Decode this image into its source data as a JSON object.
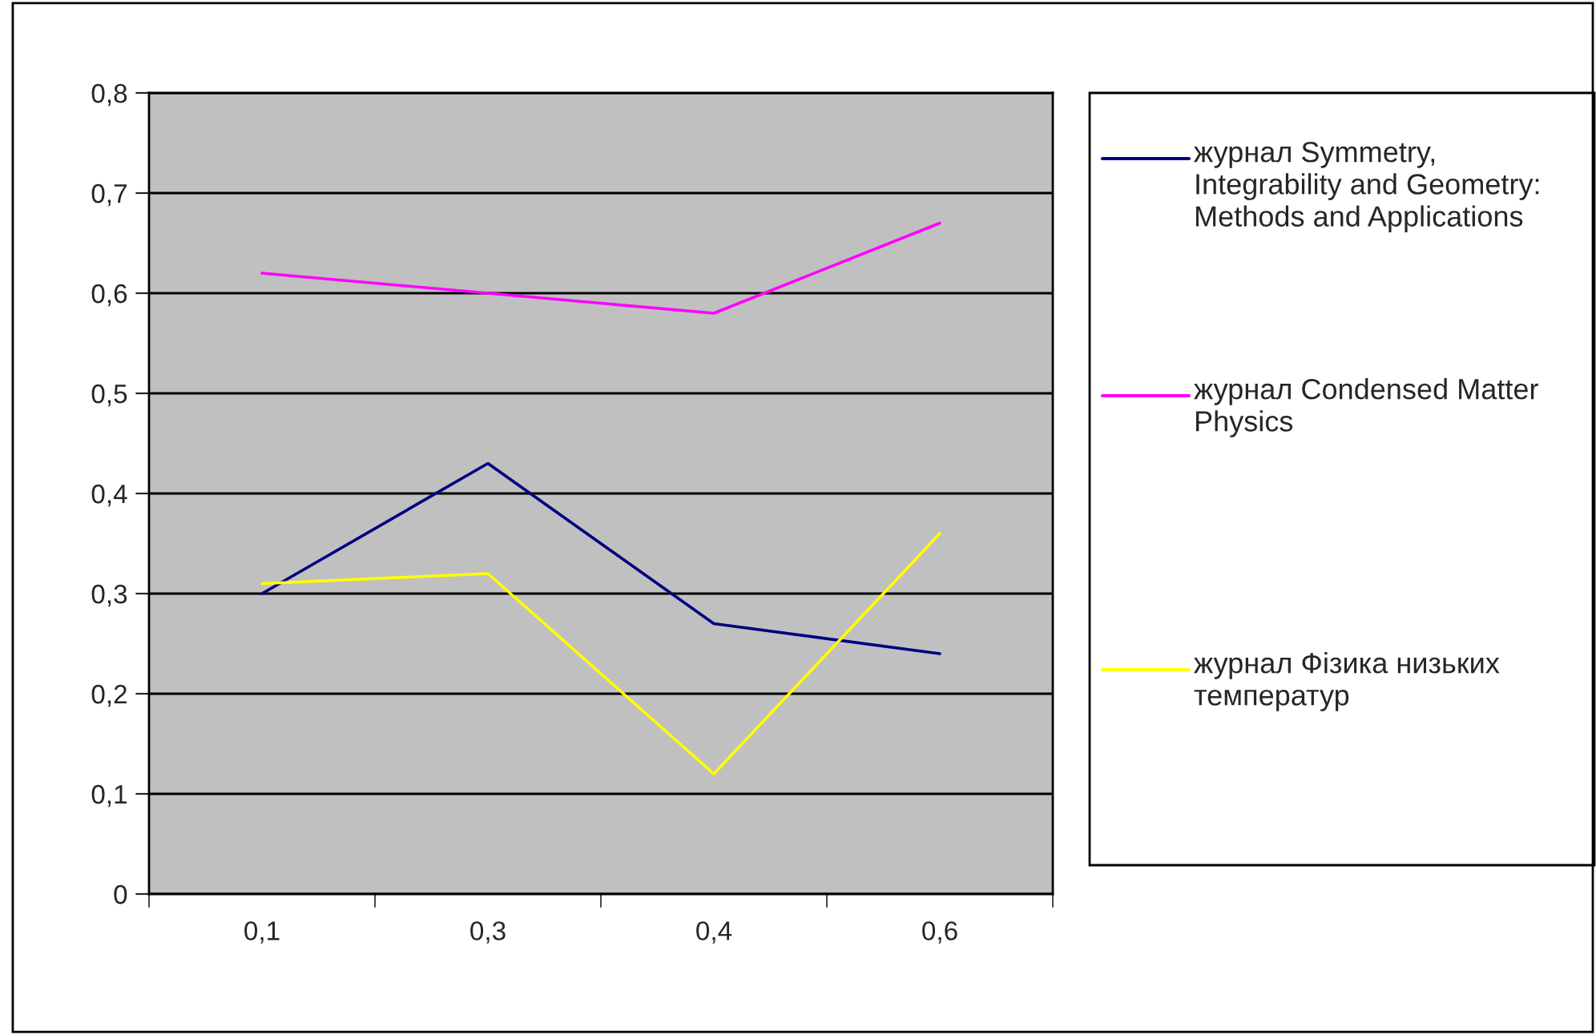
{
  "chart_data": {
    "type": "line",
    "categories": [
      "0,1",
      "0,3",
      "0,4",
      "0,6"
    ],
    "series": [
      {
        "name": "журнал Symmetry, Integrability and Geometry: Methods and Applications",
        "color": "#000080",
        "values": [
          0.3,
          0.43,
          0.27,
          0.24
        ]
      },
      {
        "name": "журнал Condensed Matter Physics",
        "color": "#ff00ff",
        "values": [
          0.62,
          0.6,
          0.58,
          0.67
        ]
      },
      {
        "name": "журнал Фізика низьких температур",
        "color": "#ffff00",
        "values": [
          0.31,
          0.32,
          0.12,
          0.36
        ]
      }
    ],
    "ylim": [
      0,
      0.8
    ],
    "yticks": [
      {
        "value": 0,
        "label": "0"
      },
      {
        "value": 0.1,
        "label": "0,1"
      },
      {
        "value": 0.2,
        "label": "0,2"
      },
      {
        "value": 0.3,
        "label": "0,3"
      },
      {
        "value": 0.4,
        "label": "0,4"
      },
      {
        "value": 0.5,
        "label": "0,5"
      },
      {
        "value": 0.6,
        "label": "0,6"
      },
      {
        "value": 0.7,
        "label": "0,7"
      },
      {
        "value": 0.8,
        "label": "0,8"
      }
    ],
    "grid": "y",
    "legend": "right",
    "marker": "none",
    "line_style": "solid"
  }
}
